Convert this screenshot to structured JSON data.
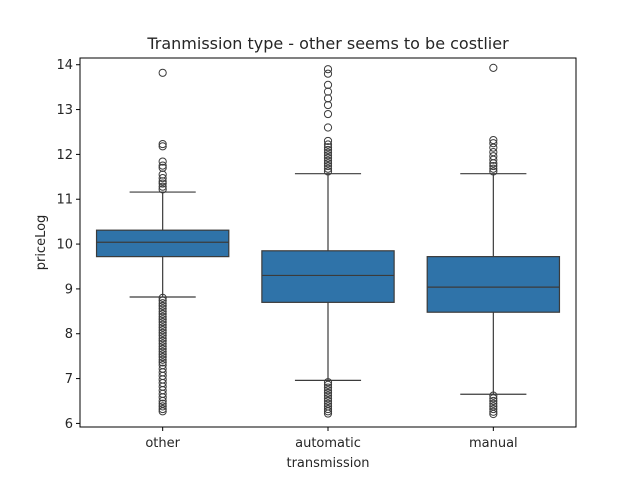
{
  "chart_data": {
    "type": "box",
    "title": "Tranmission type - other seems to be costlier",
    "xlabel": "transmission",
    "ylabel": "priceLog",
    "categories": [
      "other",
      "automatic",
      "manual"
    ],
    "ylim": [
      5.92,
      14.15
    ],
    "yticks": [
      6,
      7,
      8,
      9,
      10,
      11,
      12,
      13,
      14
    ],
    "grid": false,
    "box_color": "#2f73a9",
    "line_color": "#3b3b3b",
    "boxes": [
      {
        "category": "other",
        "whisker_low": 8.82,
        "q1": 9.72,
        "median": 10.04,
        "q3": 10.31,
        "whisker_high": 11.16,
        "outliers_high": [
          11.22,
          11.28,
          11.35,
          11.4,
          11.47,
          11.55,
          11.7,
          11.75,
          11.84,
          12.18,
          12.23,
          13.82
        ],
        "outliers_low": [
          8.8,
          8.74,
          8.68,
          8.62,
          8.56,
          8.5,
          8.44,
          8.38,
          8.32,
          8.26,
          8.2,
          8.14,
          8.08,
          8.02,
          7.96,
          7.9,
          7.84,
          7.78,
          7.72,
          7.66,
          7.6,
          7.54,
          7.48,
          7.42,
          7.36,
          7.3,
          7.22,
          7.14,
          7.06,
          6.98,
          6.9,
          6.82,
          6.74,
          6.66,
          6.58,
          6.5,
          6.44,
          6.38,
          6.32,
          6.27
        ]
      },
      {
        "category": "automatic",
        "whisker_low": 6.96,
        "q1": 8.7,
        "median": 9.3,
        "q3": 9.85,
        "whisker_high": 11.57,
        "outliers_high": [
          11.62,
          11.68,
          11.74,
          11.8,
          11.86,
          11.92,
          11.98,
          12.04,
          12.1,
          12.16,
          12.22,
          12.3,
          12.6,
          12.9,
          13.1,
          13.25,
          13.4,
          13.55,
          13.8,
          13.9
        ],
        "outliers_low": [
          6.92,
          6.86,
          6.8,
          6.74,
          6.68,
          6.62,
          6.56,
          6.5,
          6.44,
          6.38,
          6.32,
          6.27,
          6.22
        ]
      },
      {
        "category": "manual",
        "whisker_low": 6.65,
        "q1": 8.48,
        "median": 9.04,
        "q3": 9.72,
        "whisker_high": 11.57,
        "outliers_high": [
          11.62,
          11.68,
          11.74,
          11.8,
          11.88,
          11.96,
          12.05,
          12.15,
          12.25,
          12.32,
          13.93
        ],
        "outliers_low": [
          6.62,
          6.56,
          6.5,
          6.44,
          6.38,
          6.32,
          6.26,
          6.21
        ]
      }
    ]
  }
}
